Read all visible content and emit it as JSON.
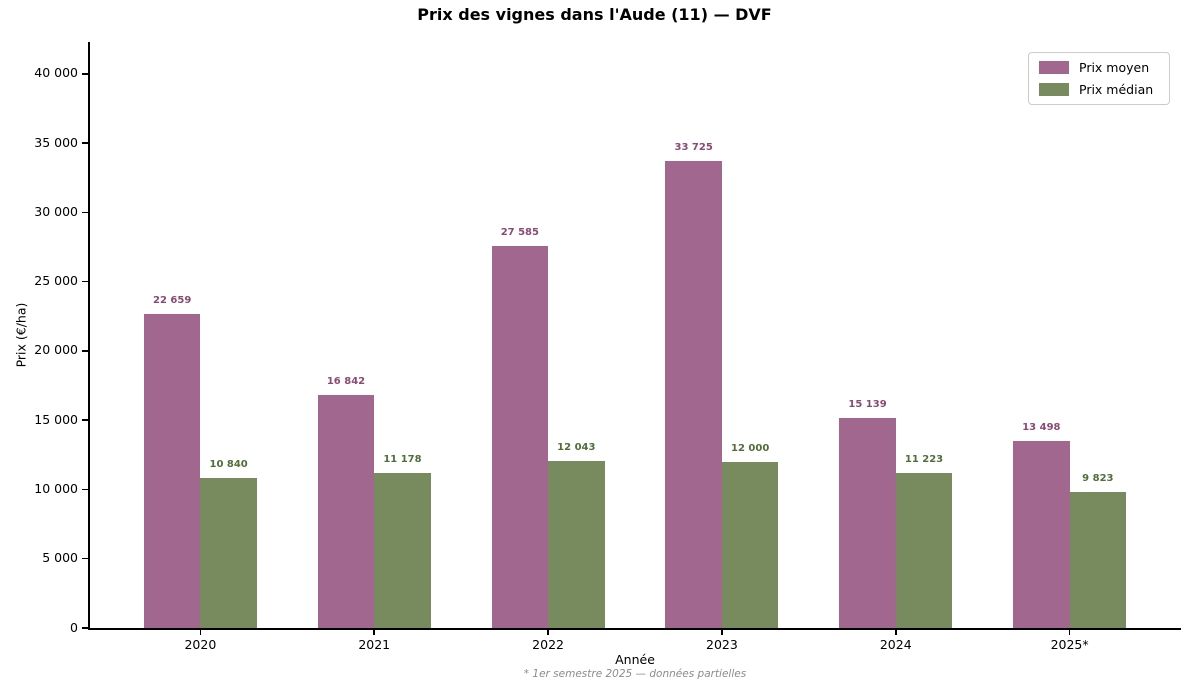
{
  "chart_data": {
    "type": "bar",
    "title": "Prix des vignes dans l'Aude (11) — DVF",
    "xlabel": "Année",
    "ylabel": "Prix (€/ha)",
    "annotation": "* 1er semestre 2025 — données partielles",
    "categories": [
      "2020",
      "2021",
      "2022",
      "2023",
      "2024",
      "2025*"
    ],
    "series": [
      {
        "name": "Prix moyen",
        "color": "#a2678f",
        "label_color": "#8a4a73",
        "values": [
          22659,
          16842,
          27585,
          33725,
          15139,
          13498
        ],
        "labels": [
          "22 659",
          "16 842",
          "27 585",
          "33 725",
          "15 139",
          "13 498"
        ]
      },
      {
        "name": "Prix médian",
        "color": "#788b5f",
        "label_color": "#4f6e38",
        "values": [
          10840,
          11178,
          12043,
          12000,
          11223,
          9823
        ],
        "labels": [
          "10 840",
          "11 178",
          "12 043",
          "12 000",
          "11 223",
          "9 823"
        ]
      }
    ],
    "ylim": [
      0,
      42300
    ],
    "yticks": [
      0,
      5000,
      10000,
      15000,
      20000,
      25000,
      30000,
      35000,
      40000
    ],
    "ytick_labels": [
      "0",
      "5 000",
      "10 000",
      "15 000",
      "20 000",
      "25 000",
      "30 000",
      "35 000",
      "40 000"
    ],
    "grid": false,
    "legend_position": "upper right"
  }
}
